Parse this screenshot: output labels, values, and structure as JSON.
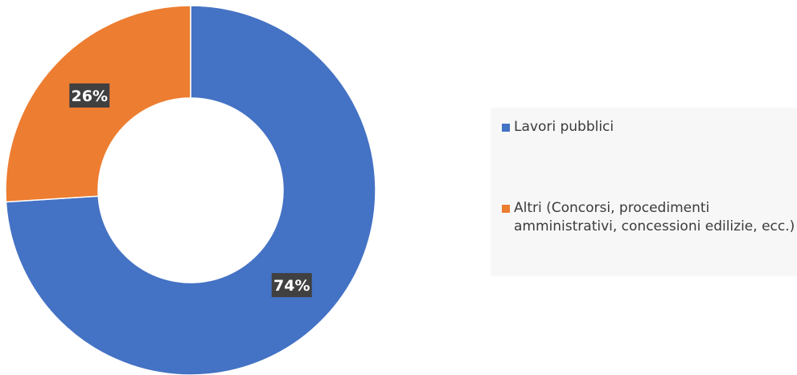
{
  "chart_data": {
    "type": "pie",
    "donut": true,
    "categories": [
      "Lavori pubblici",
      "Altri (Concorsi, procedimenti amministrativi, concessioni edilizie, ecc.)"
    ],
    "values": [
      74,
      26
    ],
    "data_labels": [
      "74%",
      "26%"
    ],
    "colors": [
      "#4472c4",
      "#ed7d31"
    ],
    "legend": "right"
  },
  "legend": {
    "items": [
      {
        "label": "Lavori pubblici",
        "color": "#4472c4"
      },
      {
        "label": "Altri (Concorsi, procedimenti amministrativi, concessioni edilizie, ecc.)",
        "color": "#ed7d31"
      }
    ]
  }
}
